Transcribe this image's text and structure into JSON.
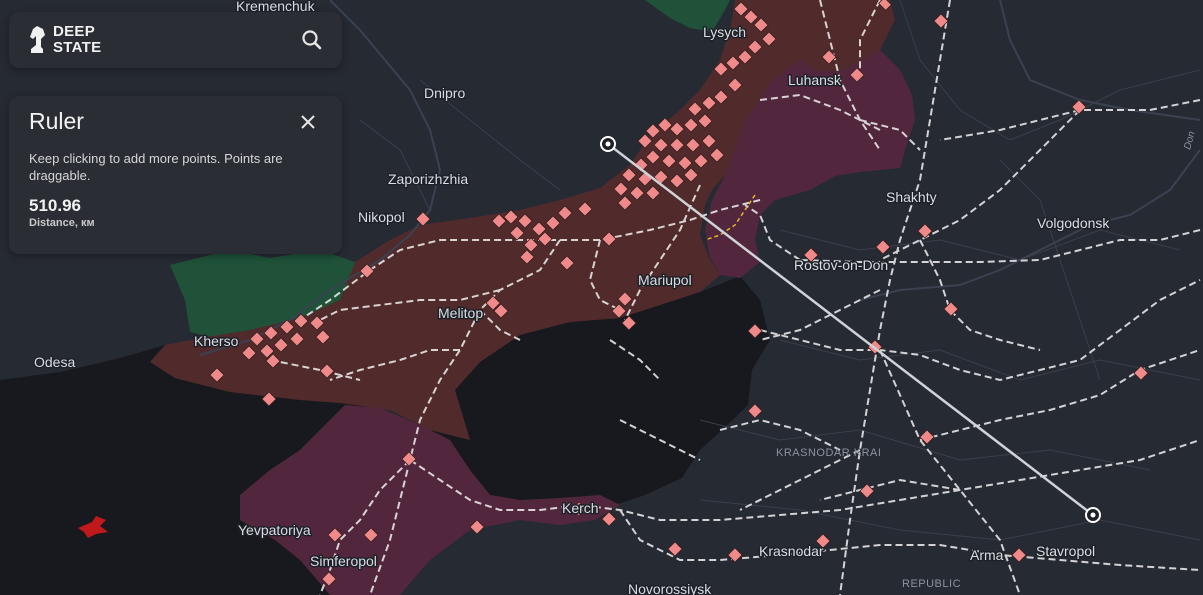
{
  "app": {
    "logo_line1": "DEEP",
    "logo_line2": "STATE"
  },
  "search": {
    "icon": "search-icon"
  },
  "ruler": {
    "title": "Ruler",
    "hint": "Keep clicking to add more points. Points are draggable.",
    "distance_value": "510.96",
    "distance_label": "Distance, км",
    "close_icon": "close-icon"
  },
  "map": {
    "cities": {
      "kremenchuk": "Kremenchuk",
      "lysych": "Lysych",
      "luhansk": "Luhansk",
      "dnipro": "Dnipro",
      "zaporizhzhia": "Zaporizhzhia",
      "nikopol": "Nikopol",
      "shakhty": "Shakhty",
      "volgodonsk": "Volgodonsk",
      "rostov": "Rostov-on-Don",
      "mariupol": "Mariupol",
      "melitopol": "Melitop",
      "kherson": "Kherso",
      "odesa": "Odesa",
      "yevpatoriya": "Yevpatoriya",
      "simferopol": "Simferopol",
      "kerch": "Kerch",
      "krasnodar": "Krasnodar",
      "armavir": "Arma",
      "stavropol": "Stavropol",
      "novorossiysk": "Novorossiysk"
    },
    "regions": {
      "krasnodar_krai": "KRASNODAR KRAI",
      "republic": "REPUBLIC"
    },
    "rivers": {
      "don": "Don"
    },
    "colors": {
      "background": "#262a33",
      "sea": "#17191e",
      "occupied": "#512a2b",
      "occupied_pre2022": "#52273e",
      "liberated": "#1f5239",
      "marker": "#f08a8a",
      "railway": "#e6e6e6",
      "ruler_line": "#cfd2d6"
    }
  }
}
